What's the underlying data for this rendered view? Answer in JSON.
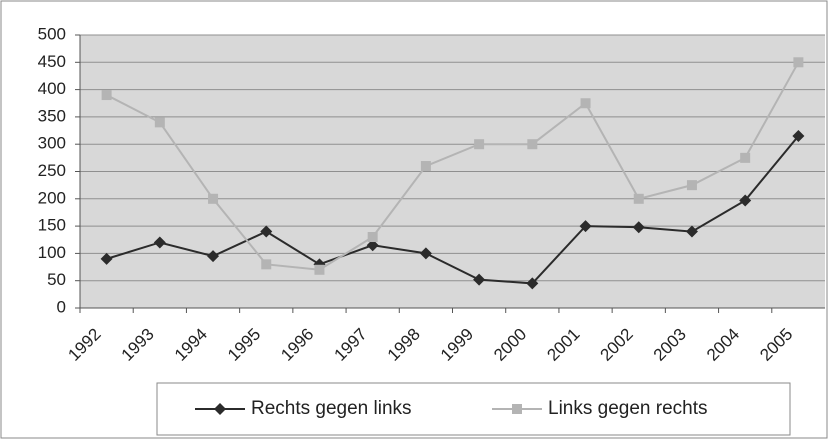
{
  "chart_data": {
    "type": "line",
    "categories": [
      "1992",
      "1993",
      "1994",
      "1995",
      "1996",
      "1997",
      "1998",
      "1999",
      "2000",
      "2001",
      "2002",
      "2003",
      "2004",
      "2005"
    ],
    "series": [
      {
        "name": "Rechts gegen links",
        "color": "#2b2b2b",
        "marker": "diamond",
        "values": [
          90,
          120,
          95,
          140,
          80,
          115,
          100,
          52,
          45,
          150,
          148,
          140,
          197,
          315
        ]
      },
      {
        "name": "Links gegen rechts",
        "color": "#b4b4b4",
        "marker": "square",
        "values": [
          390,
          340,
          200,
          80,
          70,
          130,
          260,
          300,
          300,
          375,
          200,
          225,
          275,
          450
        ]
      }
    ],
    "ylim": [
      0,
      500
    ],
    "yticks": [
      0,
      50,
      100,
      150,
      200,
      250,
      300,
      350,
      400,
      450,
      500
    ],
    "grid": true,
    "legend": "bottom"
  }
}
